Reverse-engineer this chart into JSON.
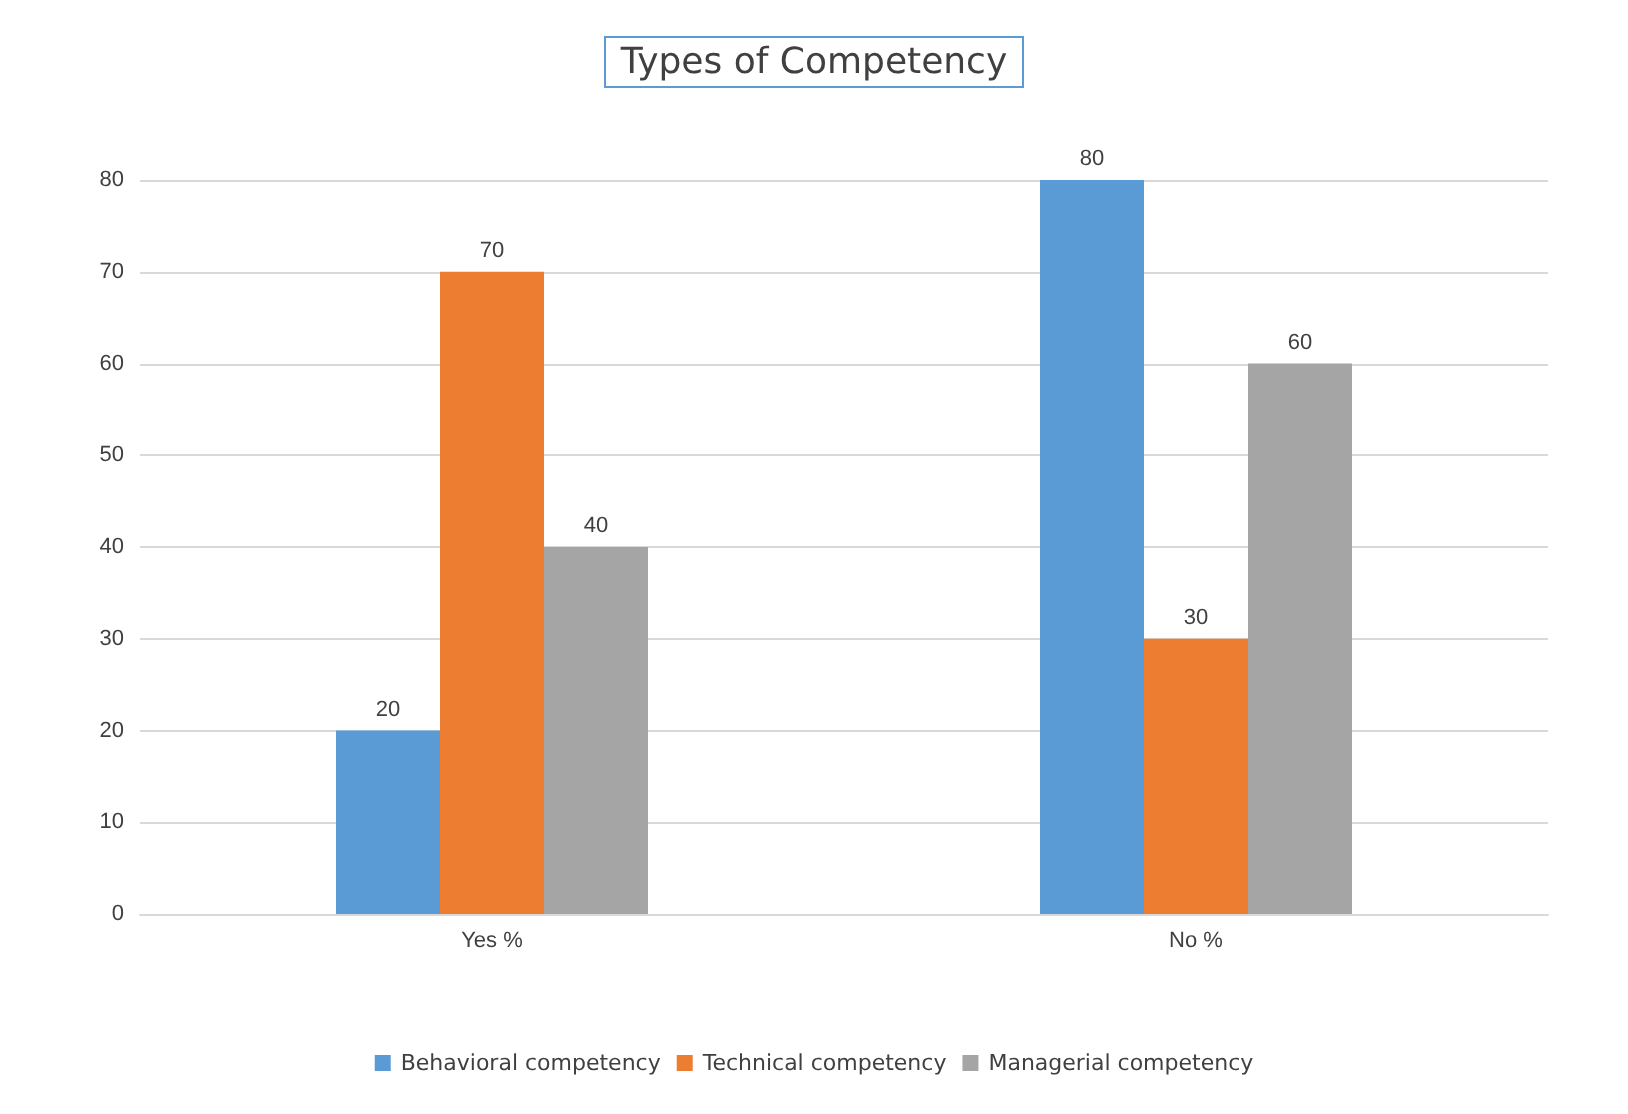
{
  "chart_data": {
    "type": "bar",
    "title": "Types of Competency",
    "categories": [
      "Yes %",
      "No %"
    ],
    "series": [
      {
        "name": "Behavioral competency",
        "color": "#5b9bd5",
        "values": [
          20,
          80
        ]
      },
      {
        "name": "Technical competency",
        "color": "#ed7d31",
        "values": [
          70,
          30
        ]
      },
      {
        "name": "Managerial competency",
        "color": "#a5a5a5",
        "values": [
          40,
          60
        ]
      }
    ],
    "ylim": [
      0,
      80
    ],
    "yticks": [
      0,
      10,
      20,
      30,
      40,
      50,
      60,
      70,
      80
    ],
    "grid": "y",
    "legend": "bottom",
    "data_labels": true
  }
}
